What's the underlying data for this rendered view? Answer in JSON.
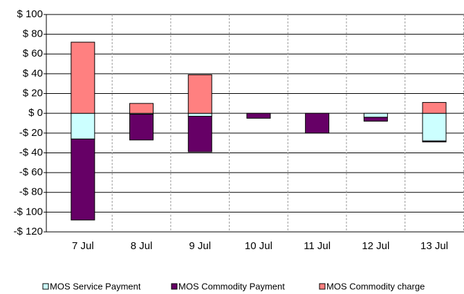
{
  "chart_data": {
    "type": "stacked_bar",
    "categories": [
      "7 Jul",
      "8 Jul",
      "9 Jul",
      "10 Jul",
      "11 Jul",
      "12 Jul",
      "13 Jul"
    ],
    "series": [
      {
        "name": "MOS Service Payment",
        "color": "#ccffff",
        "values": [
          -26,
          -1,
          -3,
          0,
          0,
          -4,
          -28
        ]
      },
      {
        "name": "MOS Commodity Payment",
        "color": "#660066",
        "values": [
          -82,
          -26,
          -36,
          -5,
          -20,
          -4,
          -1
        ]
      },
      {
        "name": "MOS Commodity charge",
        "color": "#ff8080",
        "values": [
          72,
          10,
          39,
          0,
          0,
          0,
          11
        ]
      }
    ],
    "ylim": [
      -120,
      100
    ],
    "yticks": [
      {
        "value": -120,
        "label": "-$ 120"
      },
      {
        "value": -100,
        "label": "-$ 100"
      },
      {
        "value": -80,
        "label": "-$ 80"
      },
      {
        "value": -60,
        "label": "-$ 60"
      },
      {
        "value": -40,
        "label": "-$ 40"
      },
      {
        "value": -20,
        "label": "-$ 20"
      },
      {
        "value": 0,
        "label": "$ 0"
      },
      {
        "value": 20,
        "label": "$ 20"
      },
      {
        "value": 40,
        "label": "$ 40"
      },
      {
        "value": 60,
        "label": "$ 60"
      },
      {
        "value": 80,
        "label": "$ 80"
      },
      {
        "value": 100,
        "label": "$ 100"
      }
    ],
    "grid": true,
    "legend": "bottom"
  }
}
